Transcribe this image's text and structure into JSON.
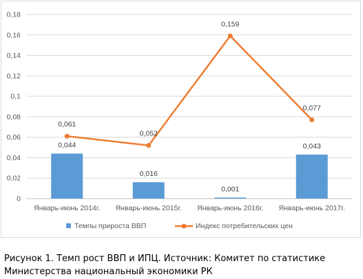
{
  "chart_data": {
    "type": "bar+line",
    "categories": [
      "Январь-июнь 2014г.",
      "Январь-июнь 2015г.",
      "Январь-июнь 2016г.",
      "Январь-июнь 2017г."
    ],
    "series": [
      {
        "name": "Темпы прироста ВВП",
        "type": "bar",
        "color": "#5b9bd5",
        "values": [
          0.044,
          0.016,
          0.001,
          0.043
        ],
        "labels": [
          "0,044",
          "0,016",
          "0,001",
          "0,043"
        ]
      },
      {
        "name": "Индекс потребительских цен",
        "type": "line",
        "color": "#ed7d31",
        "values": [
          0.061,
          0.052,
          0.159,
          0.077
        ],
        "labels": [
          "0,061",
          "0,052",
          "0,159",
          "0,077"
        ]
      }
    ],
    "yticks": [
      {
        "value": 0,
        "label": "0"
      },
      {
        "value": 0.02,
        "label": "0,02"
      },
      {
        "value": 0.04,
        "label": "0,04"
      },
      {
        "value": 0.06,
        "label": "0,06"
      },
      {
        "value": 0.08,
        "label": "0,08"
      },
      {
        "value": 0.1,
        "label": "0,1"
      },
      {
        "value": 0.12,
        "label": "0,12"
      },
      {
        "value": 0.14,
        "label": "0,14"
      },
      {
        "value": 0.16,
        "label": "0,16"
      },
      {
        "value": 0.18,
        "label": "0,18"
      }
    ],
    "ylim": [
      0,
      0.18
    ],
    "grid": true,
    "legend_position": "bottom"
  },
  "caption": "Рисунок 1. Темп рост ВВП и ИПЦ. Источник: Комитет по статистике Министерства национальный экономики РК"
}
